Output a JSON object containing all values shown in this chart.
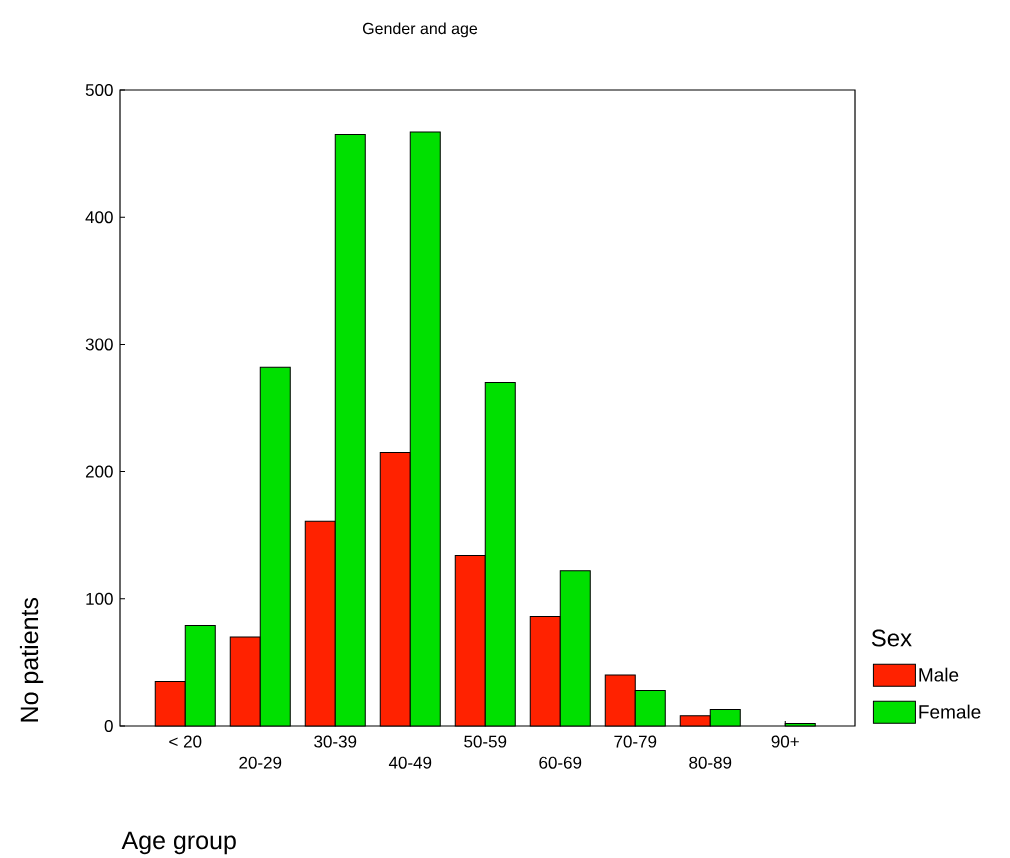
{
  "chart_data": {
    "type": "bar",
    "title": "Gender and age",
    "xlabel": "Age group",
    "ylabel": "No patients",
    "legend_title": "Sex",
    "categories": [
      "< 20",
      "20-29",
      "30-39",
      "40-49",
      "50-59",
      "60-69",
      "70-79",
      "80-89",
      "90+"
    ],
    "series": [
      {
        "name": "Male",
        "color": "#ff2200",
        "values": [
          35,
          70,
          161,
          215,
          134,
          86,
          40,
          8,
          null
        ]
      },
      {
        "name": "Female",
        "color": "#00e000",
        "values": [
          79,
          282,
          465,
          467,
          270,
          122,
          28,
          13,
          2
        ]
      }
    ],
    "ylim": [
      0,
      500
    ],
    "yticks": [
      0,
      100,
      200,
      300,
      400,
      500
    ],
    "grid": false,
    "legend": "bottom right"
  }
}
